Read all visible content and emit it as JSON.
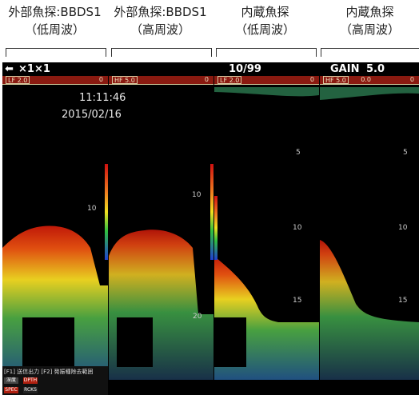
{
  "headers": [
    {
      "line1": "外部魚探:BBDS1",
      "line2": "（低周波）"
    },
    {
      "line1": "外部魚探:BBDS1",
      "line2": "（高周波）"
    },
    {
      "line1": "内蔵魚探",
      "line2": "（低周波）"
    },
    {
      "line1": "内蔵魚探",
      "line2": "（高周波）"
    }
  ],
  "topbar": {
    "zoom": "×1×1",
    "range": "10/99",
    "gain_label": "GAIN",
    "gain_value": "5.0"
  },
  "panels": [
    {
      "strip_label": "LF 2.0",
      "strip_value": "0",
      "ticks": [
        "10"
      ]
    },
    {
      "strip_label": "HF 5.0",
      "strip_value": "0",
      "ticks": [
        "10",
        "20"
      ]
    },
    {
      "strip_label": "LF 2.0",
      "strip_value": "0",
      "ticks": [
        "5",
        "10",
        "15"
      ]
    },
    {
      "strip_label": "HF 5.0",
      "strip_value": "0.0",
      "strip_value2": "0",
      "ticks": [
        "5",
        "10",
        "15"
      ]
    }
  ],
  "overlay": {
    "time": "11:11:46",
    "date": "2015/02/16"
  },
  "softkeys": {
    "line": "[F1] 送信出力  [F2] 発振種除去範囲",
    "btn1": "深度",
    "btn2": "SPEC",
    "btn3": "DPTH",
    "btn4": "RCKS"
  },
  "colors": {
    "background": "#000000",
    "strip": "#8a1a10",
    "seabed_red": "#c01808",
    "echo_yellow": "#e8d020",
    "echo_green": "#38a040"
  }
}
